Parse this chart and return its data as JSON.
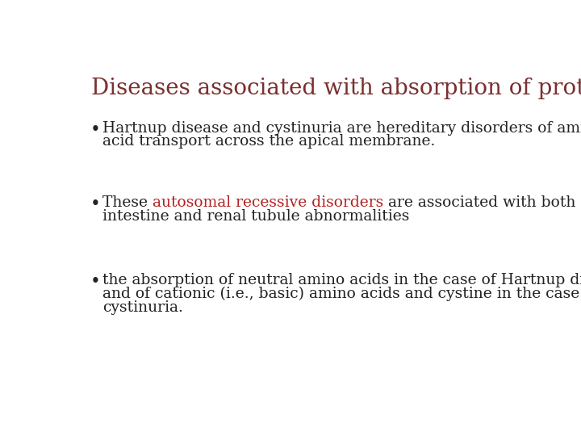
{
  "title": "Diseases associated with absorption of proteins",
  "title_color": "#7B3030",
  "title_fontsize": 20,
  "background_color": "#ffffff",
  "bullet_color": "#222222",
  "highlight_color": "#b22222",
  "body_fontsize": 13.5,
  "bullet1_line1": "Hartnup disease and cystinuria are hereditary disorders of amino",
  "bullet1_line2": "acid transport across the apical membrane.",
  "bullet2_pre": "These ",
  "bullet2_highlight": "autosomal recessive disorders",
  "bullet2_post": " are associated with both small",
  "bullet2_line2": "intestine and renal tubule abnormalities",
  "bullet3_line1": "the absorption of neutral amino acids in the case of Hartnup disease",
  "bullet3_line2": "and of cationic (i.e., basic) amino acids and cystine in the case of",
  "bullet3_line3": "cystinuria."
}
